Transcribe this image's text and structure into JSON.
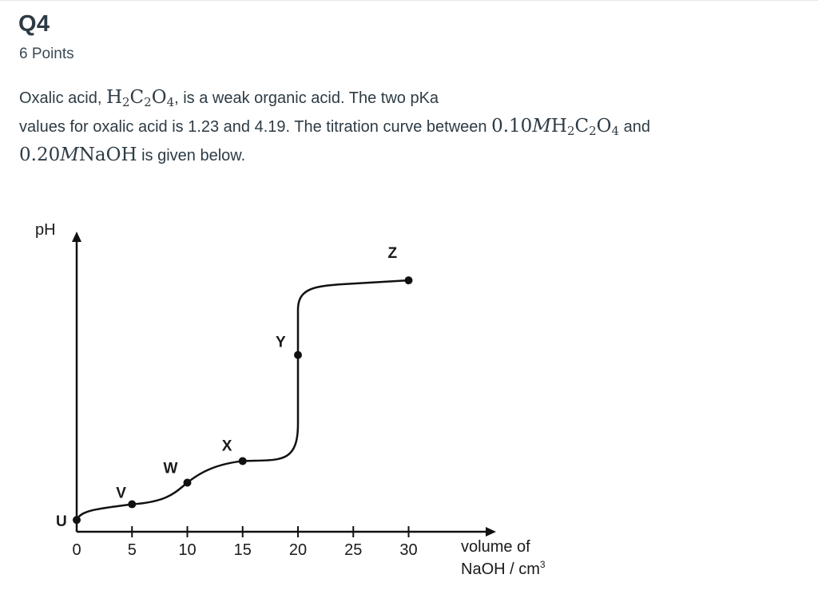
{
  "question": {
    "title": "Q4",
    "points": "6 Points",
    "text_1": "Oxalic acid, ",
    "text_2": ", is a weak organic acid. The two pKa",
    "text_3": "values for oxalic acid is 1.23 and 4.19. The titration curve between ",
    "text_4": " and",
    "text_5": " is given below.",
    "formula_acid": {
      "h": "H",
      "h_sub": "2",
      "c": "C",
      "c_sub": "2",
      "o": "O",
      "o_sub": "4"
    },
    "conc_acid": "0.10",
    "conc_base": "0.20",
    "unit_m": "M",
    "base_formula": "NaOH"
  },
  "chart_data": {
    "type": "line",
    "ylabel": "pH",
    "xlabel_line1": "volume of",
    "xlabel_line2": "NaOH / cm",
    "xlabel_sup": "3",
    "x_ticks": [
      "0",
      "5",
      "10",
      "15",
      "20",
      "25",
      "30"
    ],
    "xlim": [
      0,
      33
    ],
    "points": [
      {
        "label": "U",
        "x": 0,
        "y": 0.6
      },
      {
        "label": "V",
        "x": 5,
        "y": 1.4
      },
      {
        "label": "W",
        "x": 10,
        "y": 2.5
      },
      {
        "label": "X",
        "x": 15,
        "y": 3.6
      },
      {
        "label": "Y",
        "x": 20,
        "y": 9.0
      },
      {
        "label": "Z",
        "x": 30,
        "y": 12.8
      }
    ]
  }
}
